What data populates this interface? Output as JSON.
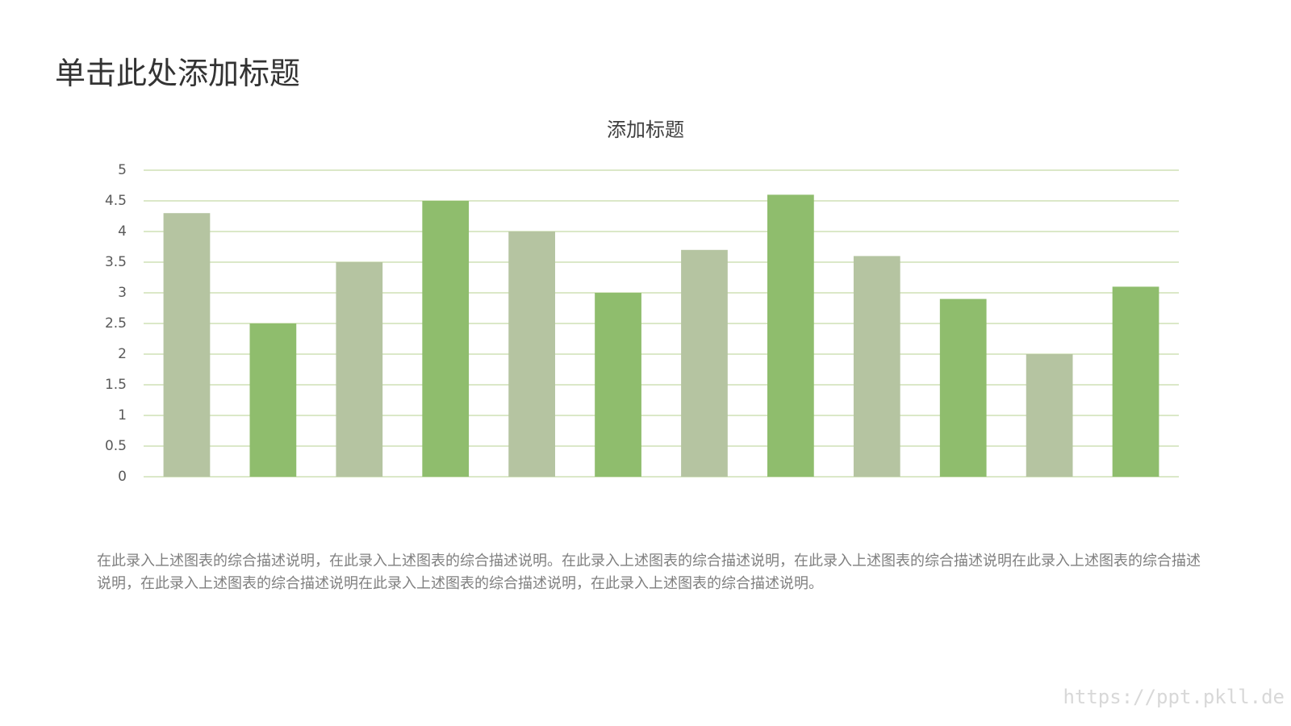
{
  "header": {
    "title": "单击此处添加标题"
  },
  "chart_data": {
    "type": "bar",
    "title": "添加标题",
    "categories": [
      null,
      null,
      null,
      null,
      null,
      null,
      null,
      null,
      null,
      null,
      null,
      null
    ],
    "values": [
      4.3,
      2.5,
      3.5,
      4.5,
      4.0,
      3.0,
      3.7,
      4.6,
      3.6,
      2.9,
      2.0,
      3.1
    ],
    "colors": [
      "#b5c4a1",
      "#8fbd6d",
      "#b5c4a1",
      "#8fbd6d",
      "#b5c4a1",
      "#8fbd6d",
      "#b5c4a1",
      "#8fbd6d",
      "#b5c4a1",
      "#8fbd6d",
      "#b5c4a1",
      "#8fbd6d"
    ],
    "ylim": [
      0,
      5
    ],
    "yticks": [
      0,
      0.5,
      1,
      1.5,
      2,
      2.5,
      3,
      3.5,
      4,
      4.5,
      5
    ],
    "grid": true
  },
  "description": "在此录入上述图表的综合描述说明，在此录入上述图表的综合描述说明。在此录入上述图表的综合描述说明，在此录入上述图表的综合描述说明在此录入上述图表的综合描述说明，在此录入上述图表的综合描述说明在此录入上述图表的综合描述说明，在此录入上述图表的综合描述说明。",
  "watermark": "https://ppt.pkll.de"
}
